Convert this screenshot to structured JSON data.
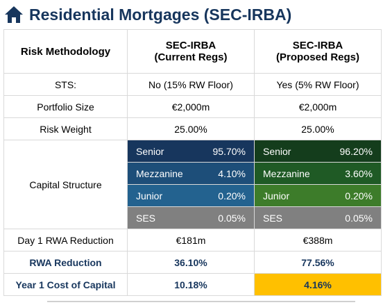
{
  "title": "Residential Mortgages (SEC-IRBA)",
  "table": {
    "header": {
      "label": "Risk Methodology",
      "current": [
        "SEC-IRBA",
        "(Current Regs)"
      ],
      "proposed": [
        "SEC-IRBA",
        "(Proposed Regs)"
      ]
    },
    "rows_top": [
      [
        "STS:",
        "No (15% RW Floor)",
        "Yes (5% RW Floor)"
      ],
      [
        "Portfolio Size",
        "€2,000m",
        "€2,000m"
      ],
      [
        "Risk Weight",
        "25.00%",
        "25.00%"
      ]
    ],
    "capital_structure": {
      "label": "Capital Structure",
      "tranches": [
        {
          "name": "Senior",
          "current": "95.70%",
          "proposed": "96.20%"
        },
        {
          "name": "Mezzanine",
          "current": "4.10%",
          "proposed": "3.60%"
        },
        {
          "name": "Junior",
          "current": "0.20%",
          "proposed": "0.20%"
        },
        {
          "name": "SES",
          "current": "0.05%",
          "proposed": "0.05%"
        }
      ]
    },
    "rows_bottom": [
      [
        "Day 1 RWA Reduction",
        "€181m",
        "€388m"
      ],
      [
        "RWA Reduction",
        "36.10%",
        "77.56%"
      ],
      [
        "Year 1 Cost of Capital",
        "10.18%",
        "4.16%"
      ]
    ]
  }
}
